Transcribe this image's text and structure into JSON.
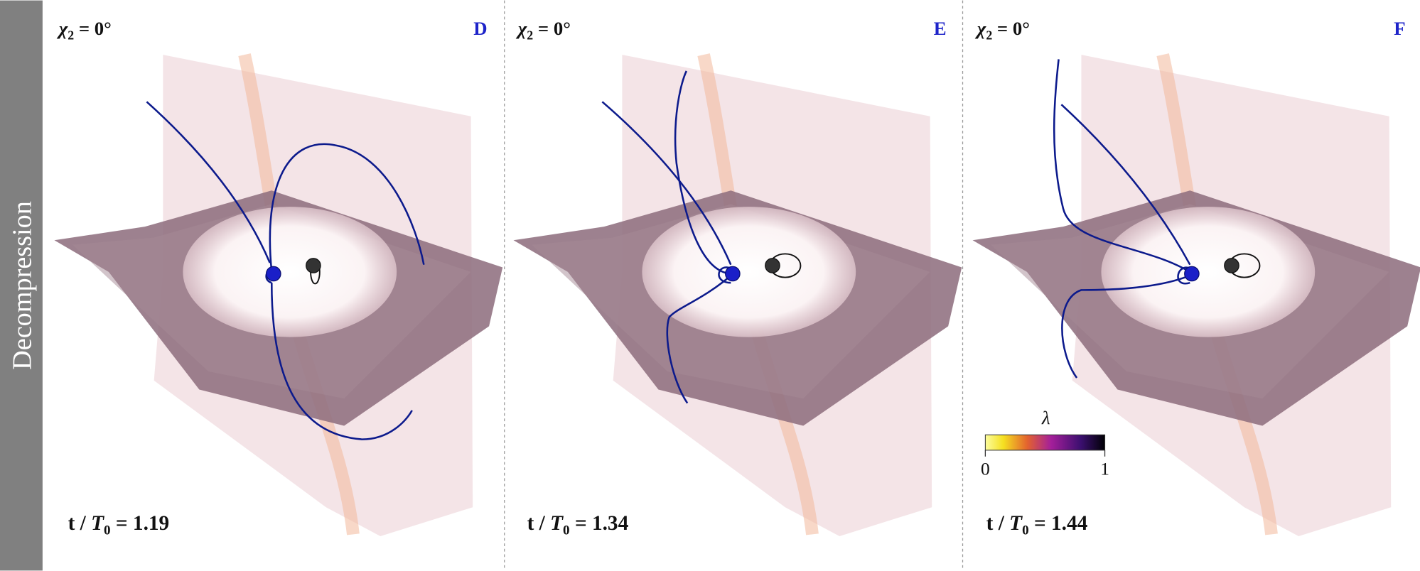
{
  "side_label": "Decompression",
  "panels": [
    {
      "letter": "D",
      "spin": {
        "symbol": "χ",
        "sub": "2",
        "rest": " = 0°"
      },
      "time": {
        "pre": "t / ",
        "T": "T",
        "sub": "0",
        "eq": " = ",
        "value": "1.19"
      }
    },
    {
      "letter": "E",
      "spin": {
        "symbol": "χ",
        "sub": "2",
        "rest": " = 0°"
      },
      "time": {
        "pre": "t / ",
        "T": "T",
        "sub": "0",
        "eq": " = ",
        "value": "1.34"
      }
    },
    {
      "letter": "F",
      "spin": {
        "symbol": "χ",
        "sub": "2",
        "rest": " = 0°"
      },
      "time": {
        "pre": "t / ",
        "T": "T",
        "sub": "0",
        "eq": " = ",
        "value": "1.44"
      }
    }
  ],
  "colorbar": {
    "label": "λ",
    "ticks": [
      "0",
      "1"
    ]
  }
}
